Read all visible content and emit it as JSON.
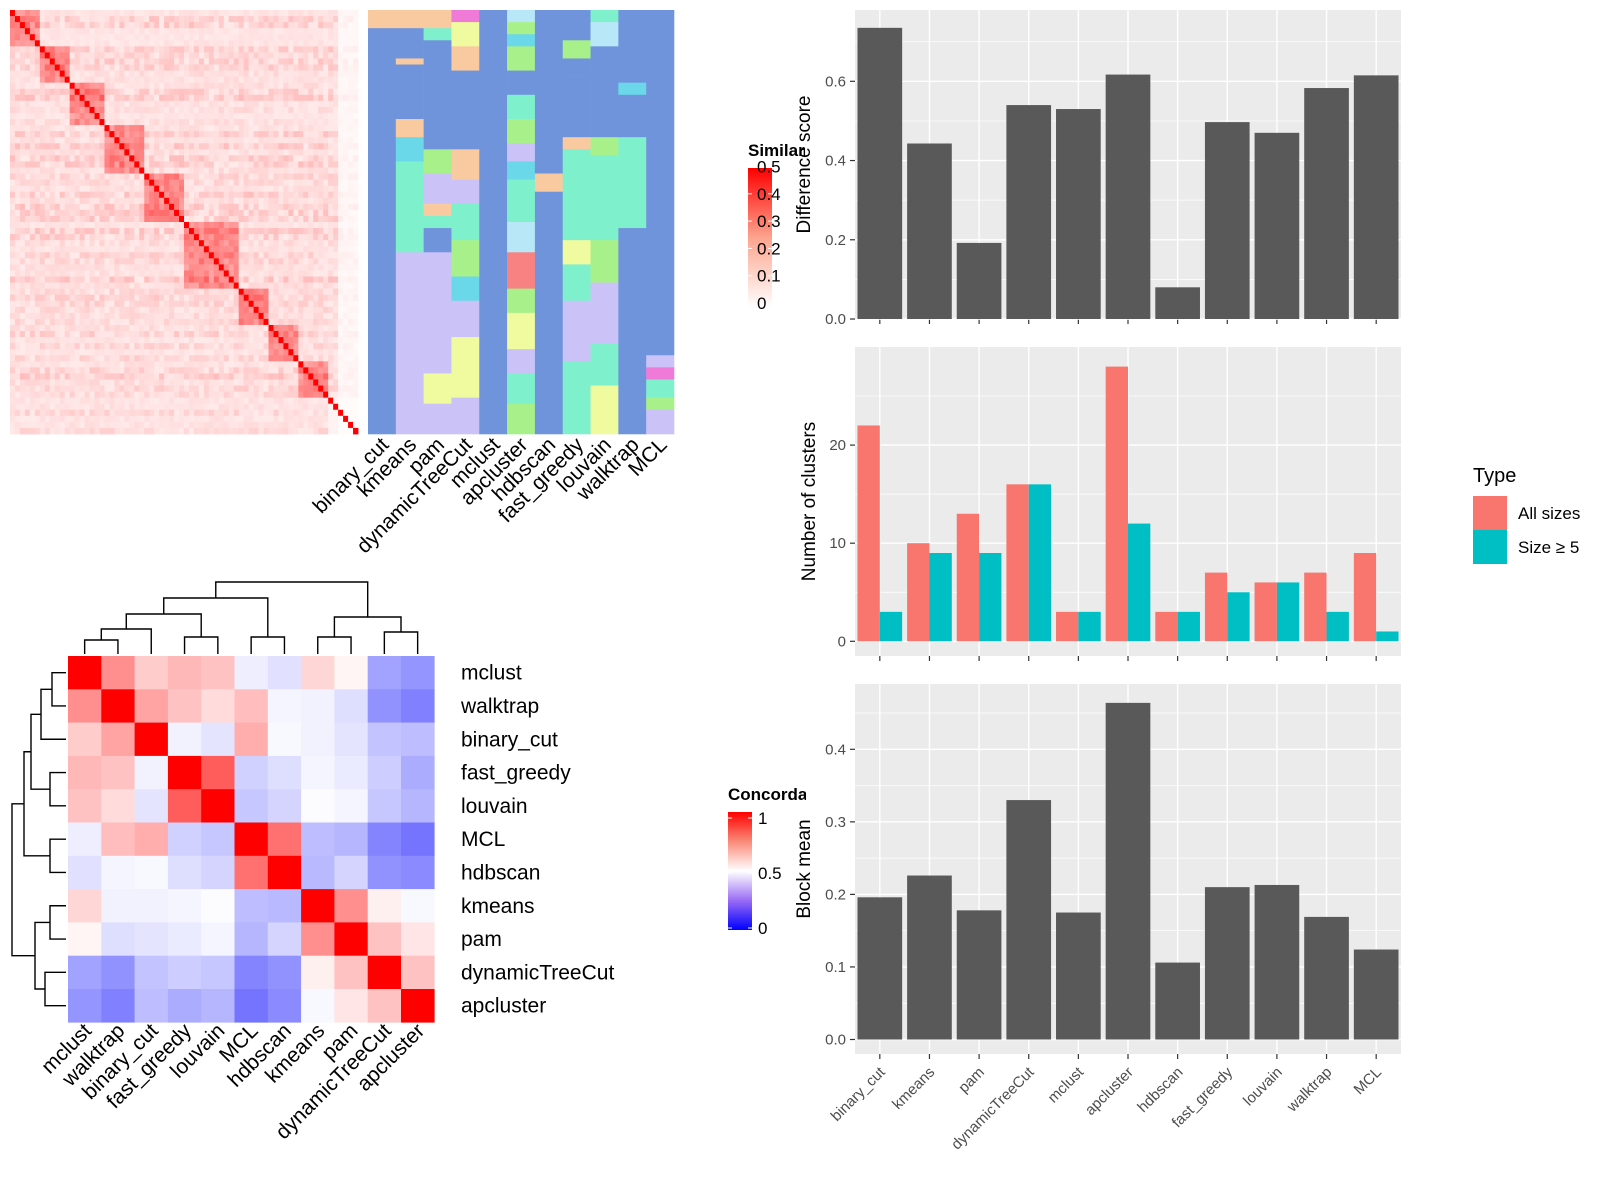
{
  "colors": {
    "panel_bg": "#ebebeb",
    "grid": "#ffffff",
    "bar": "#595959",
    "all_sizes": "#f8766d",
    "size5": "#00bfc4",
    "sim_high": "#ff0000",
    "conc_high": "#ff0000",
    "conc_mid": "#ffffff",
    "conc_low": "#0000ff",
    "label_palette": [
      "#7094db",
      "#7ff0cc",
      "#cbc2f8",
      "#f0fa9e",
      "#a8f08a",
      "#f9c9a0",
      "#6ad8e8",
      "#f07ad8",
      "#f88282",
      "#b8e8f8"
    ]
  },
  "similarity_heatmap": {
    "legend_title": "Similarity",
    "legend_ticks": [
      "0",
      "0.1",
      "0.2",
      "0.3",
      "0.4",
      "0.5"
    ]
  },
  "membership_heatmap": {
    "columns": [
      "binary_cut",
      "kmeans",
      "pam",
      "dynamicTreeCut",
      "mclust",
      "apcluster",
      "hdbscan",
      "fast_greedy",
      "louvain",
      "walktrap",
      "MCL"
    ]
  },
  "concordance_heatmap": {
    "legend_title": "Concordance",
    "legend_ticks": [
      "0",
      "0.5",
      "1"
    ],
    "methods": [
      "mclust",
      "walktrap",
      "binary_cut",
      "fast_greedy",
      "louvain",
      "MCL",
      "hdbscan",
      "kmeans",
      "pam",
      "dynamicTreeCut",
      "apcluster"
    ],
    "matrix": [
      [
        1.0,
        0.72,
        0.6,
        0.64,
        0.62,
        0.45,
        0.41,
        0.58,
        0.52,
        0.22,
        0.18
      ],
      [
        0.72,
        1.0,
        0.68,
        0.62,
        0.57,
        0.63,
        0.47,
        0.46,
        0.4,
        0.17,
        0.12
      ],
      [
        0.6,
        0.68,
        1.0,
        0.46,
        0.42,
        0.66,
        0.48,
        0.46,
        0.42,
        0.32,
        0.3
      ],
      [
        0.64,
        0.62,
        0.46,
        1.0,
        0.82,
        0.36,
        0.4,
        0.47,
        0.44,
        0.35,
        0.25
      ],
      [
        0.62,
        0.57,
        0.42,
        0.82,
        1.0,
        0.33,
        0.37,
        0.49,
        0.47,
        0.33,
        0.28
      ],
      [
        0.45,
        0.63,
        0.66,
        0.36,
        0.33,
        1.0,
        0.78,
        0.3,
        0.28,
        0.13,
        0.08
      ],
      [
        0.41,
        0.47,
        0.48,
        0.4,
        0.37,
        0.78,
        1.0,
        0.29,
        0.37,
        0.17,
        0.15
      ],
      [
        0.58,
        0.46,
        0.46,
        0.47,
        0.49,
        0.3,
        0.29,
        1.0,
        0.72,
        0.53,
        0.48
      ],
      [
        0.52,
        0.4,
        0.42,
        0.44,
        0.47,
        0.28,
        0.37,
        0.72,
        1.0,
        0.62,
        0.55
      ],
      [
        0.22,
        0.17,
        0.32,
        0.35,
        0.33,
        0.13,
        0.17,
        0.53,
        0.62,
        1.0,
        0.62
      ],
      [
        0.18,
        0.12,
        0.3,
        0.25,
        0.28,
        0.08,
        0.15,
        0.48,
        0.55,
        0.62,
        1.0
      ]
    ]
  },
  "legend": {
    "title": "Type",
    "items": [
      "All sizes",
      "Size ≥ 5"
    ]
  },
  "chart_data": [
    {
      "type": "bar",
      "categories": [
        "binary_cut",
        "kmeans",
        "pam",
        "dynamicTreeCut",
        "mclust",
        "apcluster",
        "hdbscan",
        "fast_greedy",
        "louvain",
        "walktrap",
        "MCL"
      ],
      "values": [
        0.735,
        0.443,
        0.192,
        0.54,
        0.53,
        0.617,
        0.08,
        0.497,
        0.47,
        0.583,
        0.615
      ],
      "ylabel": "Difference score",
      "ylim": [
        0,
        0.78
      ],
      "yticks": [
        0.0,
        0.2,
        0.4,
        0.6
      ],
      "ytick_labels": [
        "0.0",
        "0.2",
        "0.4",
        "0.6"
      ]
    },
    {
      "type": "bar",
      "categories": [
        "binary_cut",
        "kmeans",
        "pam",
        "dynamicTreeCut",
        "mclust",
        "apcluster",
        "hdbscan",
        "fast_greedy",
        "louvain",
        "walktrap",
        "MCL"
      ],
      "series": [
        {
          "name": "All sizes",
          "values": [
            22,
            10,
            13,
            16,
            3,
            28,
            3,
            7,
            6,
            7,
            9
          ]
        },
        {
          "name": "Size ≥ 5",
          "values": [
            3,
            9,
            9,
            16,
            3,
            12,
            3,
            5,
            6,
            3,
            1
          ]
        }
      ],
      "ylabel": "Number of clusters",
      "ylim": [
        -1.5,
        30
      ],
      "yticks": [
        0,
        10,
        20
      ],
      "ytick_labels": [
        "0",
        "10",
        "20"
      ]
    },
    {
      "type": "bar",
      "categories": [
        "binary_cut",
        "kmeans",
        "pam",
        "dynamicTreeCut",
        "mclust",
        "apcluster",
        "hdbscan",
        "fast_greedy",
        "louvain",
        "walktrap",
        "MCL"
      ],
      "values": [
        0.196,
        0.226,
        0.178,
        0.33,
        0.175,
        0.464,
        0.106,
        0.21,
        0.213,
        0.169,
        0.124
      ],
      "ylabel": "Block mean",
      "ylim": [
        -0.02,
        0.49
      ],
      "yticks": [
        0.0,
        0.1,
        0.2,
        0.3,
        0.4
      ],
      "ytick_labels": [
        "0.0",
        "0.1",
        "0.2",
        "0.3",
        "0.4"
      ]
    }
  ]
}
